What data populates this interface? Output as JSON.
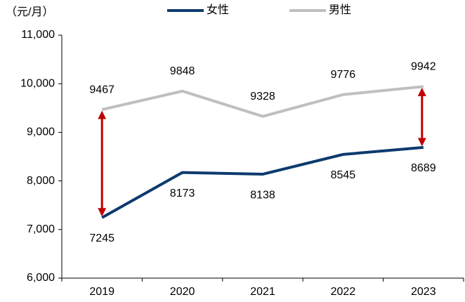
{
  "chart_data": {
    "type": "line",
    "unit_label": "（元/月）",
    "categories": [
      "2019",
      "2020",
      "2021",
      "2022",
      "2023"
    ],
    "series": [
      {
        "name": "女性",
        "color": "#0d3a6e",
        "values": [
          7245,
          8173,
          8138,
          8545,
          8689
        ]
      },
      {
        "name": "男性",
        "color": "#bfbfbf",
        "values": [
          9467,
          9848,
          9328,
          9776,
          9942
        ]
      }
    ],
    "ylim": [
      6000,
      11000
    ],
    "yticks": [
      {
        "value": 6000,
        "label": "6,000"
      },
      {
        "value": 7000,
        "label": "7,000"
      },
      {
        "value": 8000,
        "label": "8,000"
      },
      {
        "value": 9000,
        "label": "9,000"
      },
      {
        "value": 10000,
        "label": "10,000"
      },
      {
        "value": 11000,
        "label": "11,000"
      }
    ],
    "grid": false,
    "legend": "top",
    "arrow_color": "#c00000"
  }
}
